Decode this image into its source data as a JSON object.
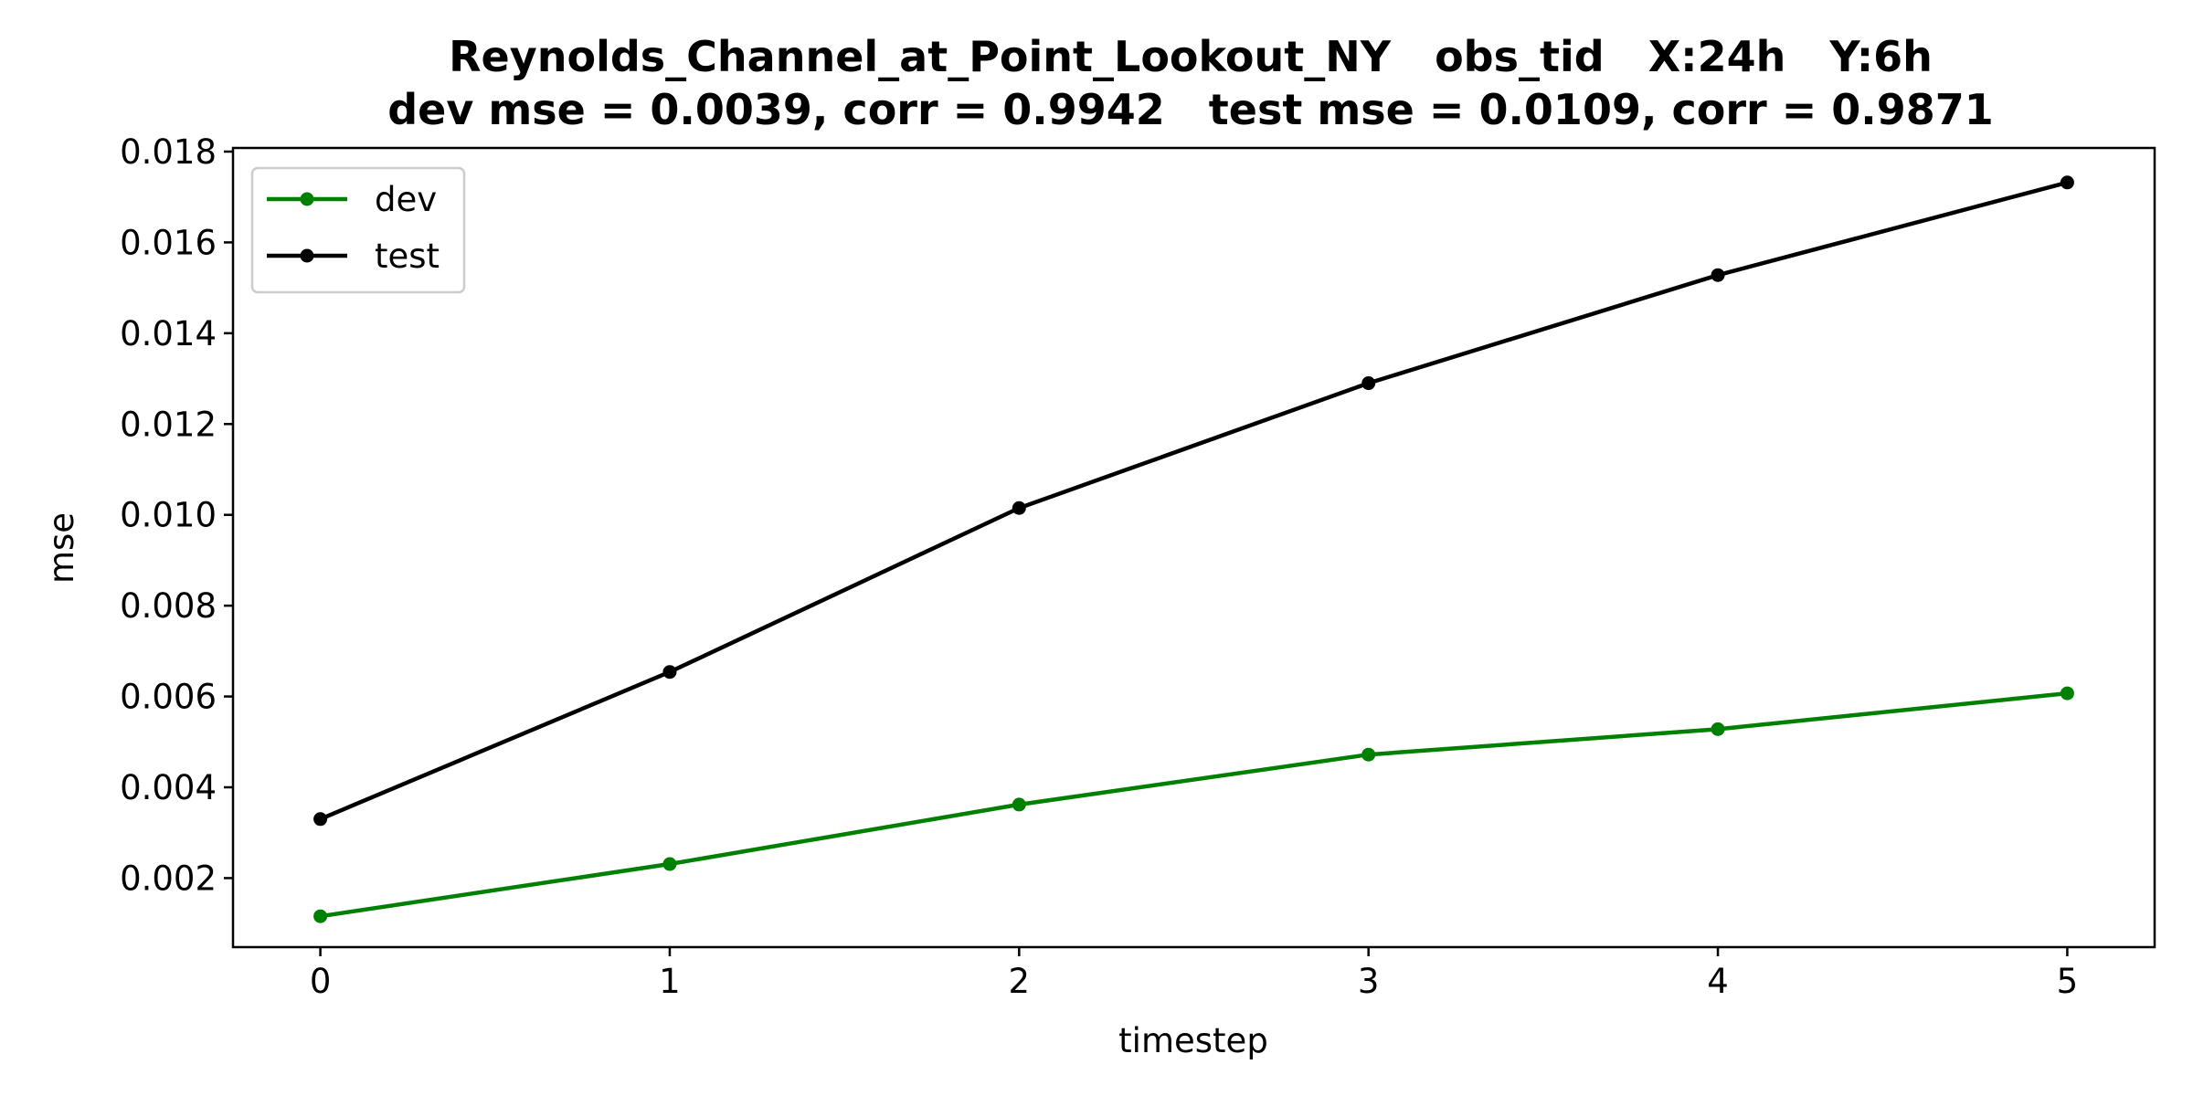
{
  "chart_data": {
    "type": "line",
    "title": "Reynolds_Channel_at_Point_Lookout_NY   obs_tid   X:24h   Y:6h",
    "subtitle": "dev mse = 0.0039, corr = 0.9942   test mse = 0.0109, corr = 0.9871",
    "xlabel": "timestep",
    "ylabel": "mse",
    "x": [
      0,
      1,
      2,
      3,
      4,
      5
    ],
    "x_ticks": [
      "0",
      "1",
      "2",
      "3",
      "4",
      "5"
    ],
    "xlim": [
      -0.25,
      5.25
    ],
    "y_ticks": [
      0.002,
      0.004,
      0.006,
      0.008,
      0.01,
      0.012,
      0.014,
      0.016,
      0.018
    ],
    "y_tick_labels": [
      "0.002",
      "0.004",
      "0.006",
      "0.008",
      "0.010",
      "0.012",
      "0.014",
      "0.016",
      "0.018"
    ],
    "ylim": [
      0.00048,
      0.01808
    ],
    "grid": false,
    "legend_position": "top-left",
    "series": [
      {
        "name": "dev",
        "color": "#008000",
        "values": [
          0.00116,
          0.00231,
          0.00362,
          0.00472,
          0.00528,
          0.00607
        ]
      },
      {
        "name": "test",
        "color": "#000000",
        "values": [
          0.0033,
          0.00654,
          0.01015,
          0.0129,
          0.01528,
          0.01732
        ]
      }
    ]
  }
}
